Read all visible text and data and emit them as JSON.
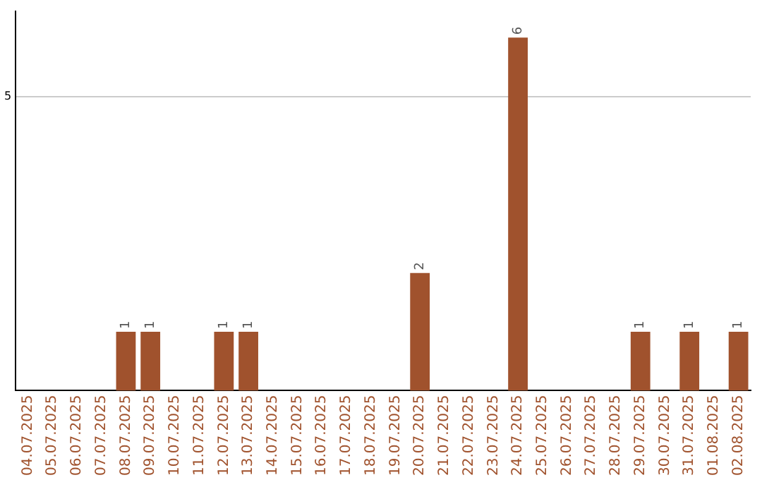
{
  "chart_data": {
    "type": "bar",
    "categories": [
      "04.07.2025",
      "05.07.2025",
      "06.07.2025",
      "07.07.2025",
      "08.07.2025",
      "09.07.2025",
      "10.07.2025",
      "11.07.2025",
      "12.07.2025",
      "13.07.2025",
      "14.07.2025",
      "15.07.2025",
      "16.07.2025",
      "17.07.2025",
      "18.07.2025",
      "19.07.2025",
      "20.07.2025",
      "21.07.2025",
      "22.07.2025",
      "23.07.2025",
      "24.07.2025",
      "25.07.2025",
      "26.07.2025",
      "27.07.2025",
      "28.07.2025",
      "29.07.2025",
      "30.07.2025",
      "31.07.2025",
      "01.08.2025",
      "02.08.2025"
    ],
    "values": [
      0,
      0,
      0,
      0,
      1,
      1,
      0,
      0,
      1,
      1,
      0,
      0,
      0,
      0,
      0,
      0,
      2,
      0,
      0,
      0,
      6,
      0,
      0,
      0,
      0,
      1,
      0,
      1,
      0,
      1
    ],
    "value_labels": [
      null,
      null,
      null,
      null,
      "1",
      "1",
      null,
      null,
      "1",
      "1",
      null,
      null,
      null,
      null,
      null,
      null,
      "2",
      null,
      null,
      null,
      "6",
      null,
      null,
      null,
      null,
      "1",
      null,
      "1",
      null,
      "1"
    ],
    "color": "#a0522d",
    "ylim": [
      0,
      6.45
    ],
    "yticks": [
      5
    ],
    "grid": "y",
    "legend": false
  }
}
